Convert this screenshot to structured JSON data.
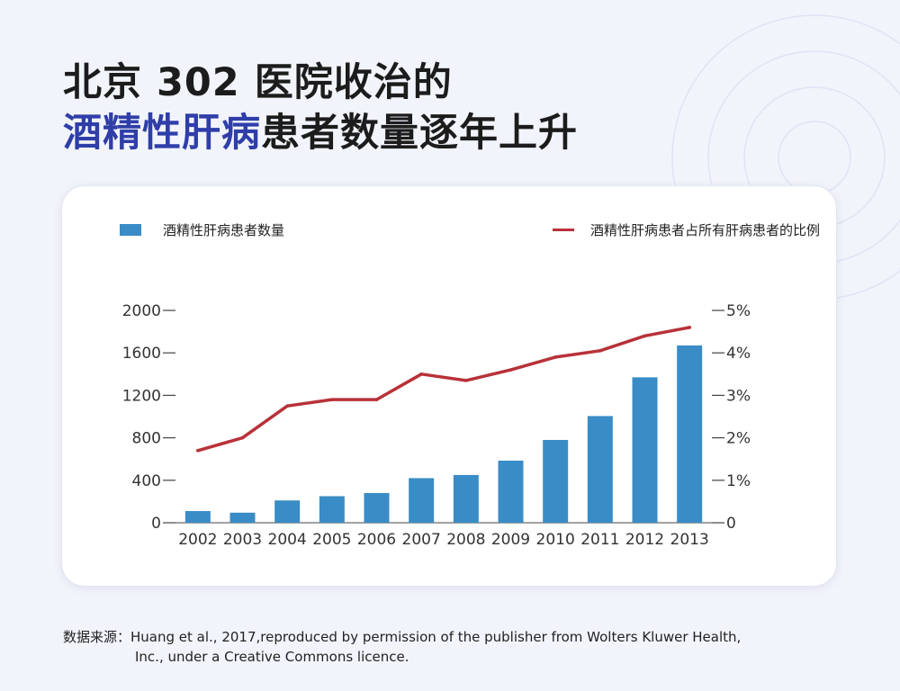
{
  "title": {
    "line1": "北京 302 医院收治的",
    "line2_highlight": "酒精性肝病",
    "line2_rest": "患者数量逐年上升"
  },
  "colors": {
    "title_highlight": "#2f3ea8",
    "bar": "#3a8cc6",
    "line": "#b83138",
    "background": "#f2f4fb"
  },
  "chart_data": {
    "type": "bar",
    "title": "",
    "categories": [
      "2002",
      "2003",
      "2004",
      "2005",
      "2006",
      "2007",
      "2008",
      "2009",
      "2010",
      "2011",
      "2012",
      "2013"
    ],
    "series": [
      {
        "name": "酒精性肝病患者数量",
        "type": "bar",
        "axis": "left",
        "values": [
          110,
          95,
          210,
          250,
          280,
          420,
          450,
          585,
          780,
          1005,
          1370,
          1670
        ]
      },
      {
        "name": "酒精性肝病患者占所有肝病患者的比例",
        "type": "line",
        "axis": "right",
        "values": [
          1.7,
          2.0,
          2.75,
          2.9,
          2.9,
          3.5,
          3.35,
          3.6,
          3.9,
          4.05,
          4.4,
          4.6
        ]
      }
    ],
    "y_left": {
      "ylim": [
        0,
        2000
      ],
      "ticks": [
        "0",
        "400",
        "800",
        "1200",
        "1600",
        "2000"
      ],
      "tick_values": [
        0,
        400,
        800,
        1200,
        1600,
        2000
      ]
    },
    "y_right": {
      "ylim": [
        0,
        5
      ],
      "ticks": [
        "0",
        "1%",
        "2%",
        "3%",
        "4%",
        "5%"
      ],
      "tick_values": [
        0,
        1,
        2,
        3,
        4,
        5
      ]
    },
    "legend_placement": "top",
    "grid": false
  },
  "source": {
    "label": "数据来源：",
    "line1": "Huang et al., 2017,reproduced by permission of the publisher from Wolters Kluwer Health,",
    "line2": "Inc., under a Creative Commons licence."
  }
}
